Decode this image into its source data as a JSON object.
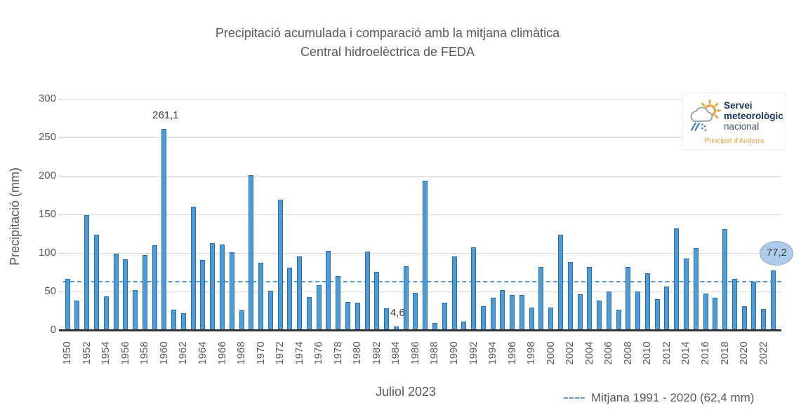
{
  "title": {
    "line1": "Precipitació acumulada i comparació amb la mitjana climàtica",
    "line2": "Central hidroelèctrica de FEDA"
  },
  "logo": {
    "line1": "Servei",
    "line2": "meteorològic",
    "line3": "nacional",
    "line4": "Principat d'Andorra"
  },
  "colors": {
    "bar_fill": "#4F9BD5",
    "bar_border": "#2570B4",
    "mean_line": "#5B9BD5",
    "gridline": "#D9D9D9",
    "tick_mark": "#C6C6C6",
    "axis_line": "#333333",
    "text_gray": "#595959",
    "annotation_text": "#404040",
    "ellipse_fill": "#AECBEB",
    "ellipse_border": "#8FA8C8",
    "logo_blue": "#17375E",
    "logo_orange": "#E9A23C",
    "rain_blue": "#3C78C8"
  },
  "chart_data": {
    "type": "bar",
    "title": "Precipitació acumulada i comparació amb la mitjana climàtica — Central hidroelèctrica de FEDA",
    "xlabel": "Juliol 2023",
    "ylabel": "Precipitació (mm)",
    "ylim": [
      0,
      300
    ],
    "yticks": [
      0,
      50,
      100,
      150,
      200,
      250,
      300
    ],
    "grid": "horizontal",
    "legend_position": "bottom-right",
    "mean_line": {
      "value": 62.4,
      "label": "Mitjana 1991 - 2020 (62,4 mm)"
    },
    "years": [
      1950,
      1951,
      1952,
      1953,
      1954,
      1955,
      1956,
      1957,
      1958,
      1959,
      1960,
      1961,
      1962,
      1963,
      1964,
      1965,
      1966,
      1967,
      1968,
      1969,
      1970,
      1971,
      1972,
      1973,
      1974,
      1975,
      1976,
      1977,
      1978,
      1979,
      1980,
      1981,
      1982,
      1983,
      1984,
      1985,
      1986,
      1987,
      1988,
      1989,
      1990,
      1991,
      1992,
      1993,
      1994,
      1995,
      1996,
      1997,
      1998,
      1999,
      2000,
      2001,
      2002,
      2003,
      2004,
      2005,
      2006,
      2007,
      2008,
      2009,
      2010,
      2011,
      2012,
      2013,
      2014,
      2015,
      2016,
      2017,
      2018,
      2019,
      2020,
      2021,
      2022,
      2023
    ],
    "values": [
      66,
      38,
      149,
      124,
      44,
      99,
      92,
      52,
      97,
      110,
      261.1,
      26,
      22,
      160,
      91,
      113,
      111,
      101,
      25,
      201,
      87,
      51,
      169,
      81,
      95,
      43,
      58,
      103,
      70,
      36,
      35,
      102,
      75,
      28,
      4.6,
      83,
      48,
      194,
      9,
      35,
      95,
      11,
      107,
      31,
      42,
      52,
      45,
      45,
      29,
      82,
      29,
      124,
      88,
      46,
      82,
      38,
      50,
      26,
      82,
      50,
      74,
      40,
      56,
      132,
      93,
      106,
      47,
      42,
      131,
      66,
      31,
      63,
      27,
      77.2
    ],
    "x_tick_years": [
      1950,
      1952,
      1954,
      1956,
      1958,
      1960,
      1962,
      1964,
      1966,
      1968,
      1970,
      1972,
      1974,
      1976,
      1978,
      1980,
      1982,
      1984,
      1986,
      1988,
      1990,
      1992,
      1994,
      1996,
      1998,
      2000,
      2002,
      2004,
      2006,
      2008,
      2010,
      2012,
      2014,
      2016,
      2018,
      2020,
      2022
    ],
    "annotations": [
      {
        "year": 1960,
        "text": "261,1",
        "placement": "above"
      },
      {
        "year": 1984,
        "text": "4,6",
        "placement": "above"
      },
      {
        "year": 2023,
        "text": "77,2",
        "placement": "bubble"
      }
    ]
  }
}
